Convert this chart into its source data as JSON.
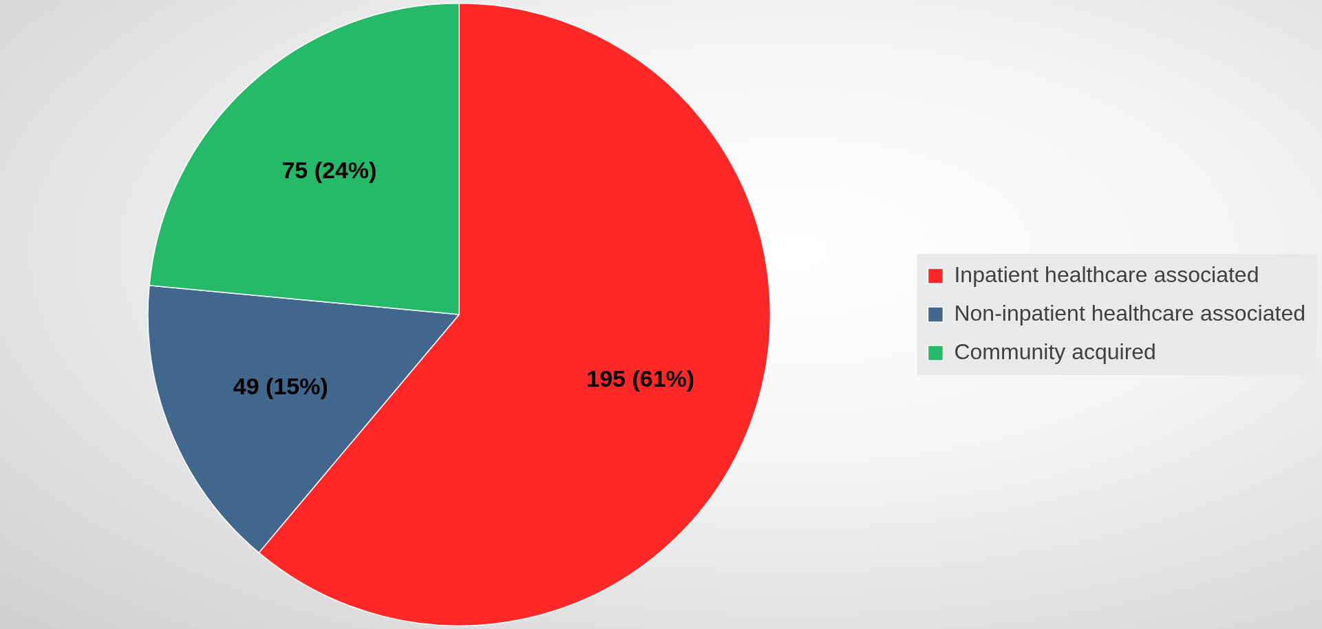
{
  "chart_data": {
    "type": "pie",
    "categories": [
      "Inpatient healthcare associated",
      "Non-inpatient healthcare associated",
      "Community acquired"
    ],
    "values": [
      195,
      49,
      75
    ],
    "colors": [
      "#ff2828",
      "#41678c",
      "#27b96a"
    ],
    "value_labels": [
      "195 (61%)",
      "49 (15%)",
      "75 (24%)"
    ],
    "legend": "right"
  }
}
